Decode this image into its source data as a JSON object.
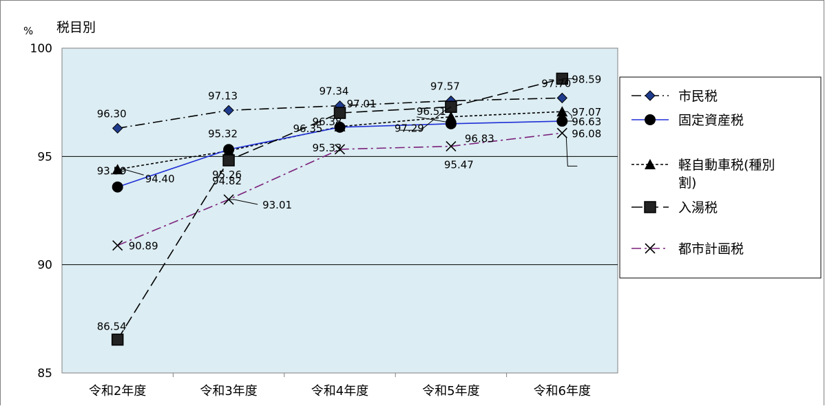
{
  "chart_data": {
    "type": "line",
    "title": "税目別",
    "ylabel": "%",
    "categories": [
      "令和2年度",
      "令和3年度",
      "令和4年度",
      "令和5年度",
      "令和6年度"
    ],
    "ylim": [
      85,
      100
    ],
    "yticks": [
      85,
      90,
      95,
      100
    ],
    "y_tick_labels": [
      "85",
      "90",
      "95",
      "100"
    ],
    "grid": "horizontal",
    "legend_position": "right",
    "series": [
      {
        "name": "市民税",
        "values": [
          96.3,
          97.13,
          97.34,
          97.57,
          97.7
        ],
        "labels": [
          "96.30",
          "97.13",
          "97.34",
          "97.57",
          "97.70"
        ],
        "color": "#000000",
        "marker": "diamond",
        "marker_color": "#1f3b8c",
        "dash": "longdash-dot"
      },
      {
        "name": "固定資産税",
        "values": [
          93.59,
          95.32,
          96.35,
          96.51,
          96.63
        ],
        "labels": [
          "93.59",
          "95.32",
          "96.35",
          "96.51",
          "96.63"
        ],
        "color": "#1f2fd6",
        "marker": "circle",
        "marker_color": "#000000",
        "dash": "solid"
      },
      {
        "name": "軽自動車税(種別割)",
        "values": [
          94.4,
          95.26,
          96.38,
          96.83,
          97.07
        ],
        "labels": [
          "94.40",
          "95.26",
          "96.38",
          "96.83",
          "97.07"
        ],
        "color": "#000000",
        "marker": "triangle",
        "marker_color": "#000000",
        "dash": "short-dash"
      },
      {
        "name": "入湯税",
        "values": [
          86.54,
          94.82,
          97.01,
          97.29,
          98.59
        ],
        "labels": [
          "86.54",
          "94.82",
          "97.01",
          "97.29",
          "98.59"
        ],
        "color": "#000000",
        "marker": "square",
        "marker_color": "#000000",
        "dash": "long-dash"
      },
      {
        "name": "都市計画税",
        "values": [
          90.89,
          93.01,
          95.33,
          95.47,
          96.08
        ],
        "labels": [
          "90.89",
          "93.01",
          "95.33",
          "95.47",
          "96.08"
        ],
        "color": "#7a1f7a",
        "marker": "x",
        "marker_color": "#000000",
        "dash": "dash-dot"
      }
    ],
    "plot_background": "#dcedf3"
  }
}
